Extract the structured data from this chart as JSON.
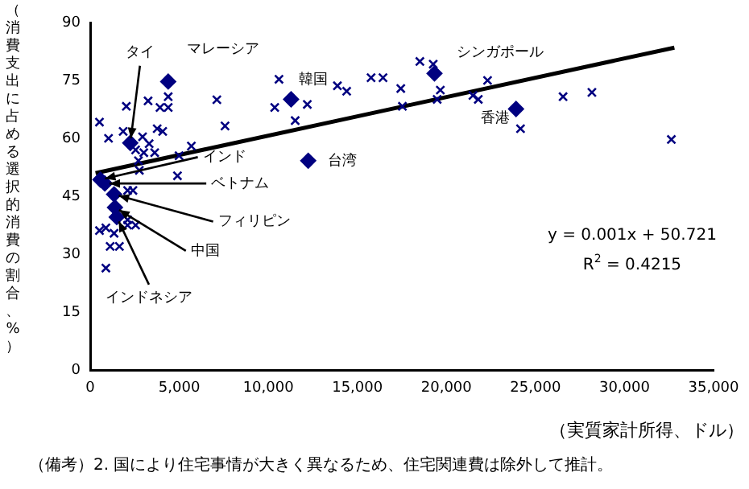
{
  "chart_data": {
    "type": "scatter",
    "xlabel": "（実質家計所得、ドル）",
    "ylabel": "（消費支出に占める選択的消費の割合、%）",
    "xlim": [
      0,
      35000
    ],
    "xticks": [
      0,
      {
        "value": 5000,
        "label": "5,000"
      },
      {
        "value": 10000,
        "label": "10,000"
      },
      {
        "value": 15000,
        "label": "15,000"
      },
      {
        "value": 20000,
        "label": "20,000"
      },
      {
        "value": 25000,
        "label": "25,000"
      },
      {
        "value": 30000,
        "label": "30,000"
      },
      {
        "value": 35000,
        "label": "35,000"
      }
    ],
    "ylim": [
      0,
      90
    ],
    "yticks": [
      0,
      15,
      30,
      45,
      60,
      75,
      90
    ],
    "grid": false,
    "legend": false,
    "series": [
      {
        "type": "scatter",
        "marker": "cross",
        "color": "#000080",
        "x": [
          520,
          2030,
          3250,
          3920,
          4380,
          4380,
          7110,
          7570,
          1030,
          1850,
          2940,
          3310,
          3760,
          4070,
          2550,
          3010,
          3620,
          2710,
          4990,
          5680,
          2760,
          4900,
          2100,
          2400,
          520,
          880,
          1340,
          1120,
          1640,
          2100,
          2550,
          880,
          2100,
          10600,
          10360,
          12190,
          11510,
          13880,
          14400,
          15770,
          16440,
          17440,
          17530,
          18510,
          19260,
          19660,
          19480,
          21490,
          21790,
          22310,
          24160,
          26550,
          28170,
          32630
        ],
        "values": [
          64.2,
          68.3,
          69.7,
          68,
          70.8,
          68,
          70,
          63.2,
          60,
          61.8,
          60.4,
          58.6,
          62.5,
          61.8,
          57,
          56.3,
          56.3,
          54.2,
          55.5,
          58,
          51.7,
          50.3,
          46.5,
          46.5,
          36.1,
          36.8,
          35.4,
          32,
          32,
          37.5,
          37.5,
          26.4,
          38.9,
          75.3,
          68,
          68.8,
          64.6,
          73.6,
          72.2,
          75.7,
          75.7,
          72.9,
          68.3,
          79.9,
          79.2,
          72.5,
          70.1,
          71.1,
          70.1,
          75,
          62.5,
          70.8,
          71.9,
          59.7
        ]
      },
      {
        "type": "scatter",
        "marker": "diamond",
        "color": "#000080",
        "x": [
          2250,
          4380,
          11280,
          19330,
          23910,
          12240,
          570,
          820,
          1340,
          1390,
          1490
        ],
        "values": [
          58.8,
          74.7,
          70.1,
          76.8,
          67.6,
          54.2,
          49.3,
          48.3,
          45.5,
          42.1,
          39.6
        ]
      },
      {
        "type": "line",
        "marker": "none",
        "color": "#000000",
        "x": [
          300,
          32800
        ],
        "values": [
          51.0,
          83.5
        ]
      }
    ],
    "annotations": [
      {
        "text": "タイ",
        "x": 2250,
        "y": 58.8
      },
      {
        "text": "マレーシア",
        "x": 4380,
        "y": 74.7
      },
      {
        "text": "韓国",
        "x": 11280,
        "y": 70.1
      },
      {
        "text": "シンガポール",
        "x": 19330,
        "y": 76.8
      },
      {
        "text": "香港",
        "x": 23910,
        "y": 67.6
      },
      {
        "text": "台湾",
        "x": 12240,
        "y": 54.2
      },
      {
        "text": "インド",
        "x": 570,
        "y": 49.3
      },
      {
        "text": "ベトナム",
        "x": 820,
        "y": 48.3
      },
      {
        "text": "フィリピン",
        "x": 1340,
        "y": 45.5
      },
      {
        "text": "中国",
        "x": 1390,
        "y": 42.1
      },
      {
        "text": "インドネシア",
        "x": 1490,
        "y": 39.6
      },
      "y = 0.001x + 50.721",
      "R$^{2}$ = 0.4215",
      "（備考）2. 国により住宅事情が大きく異なるため、住宅関連費は除外して推計。"
    ]
  }
}
